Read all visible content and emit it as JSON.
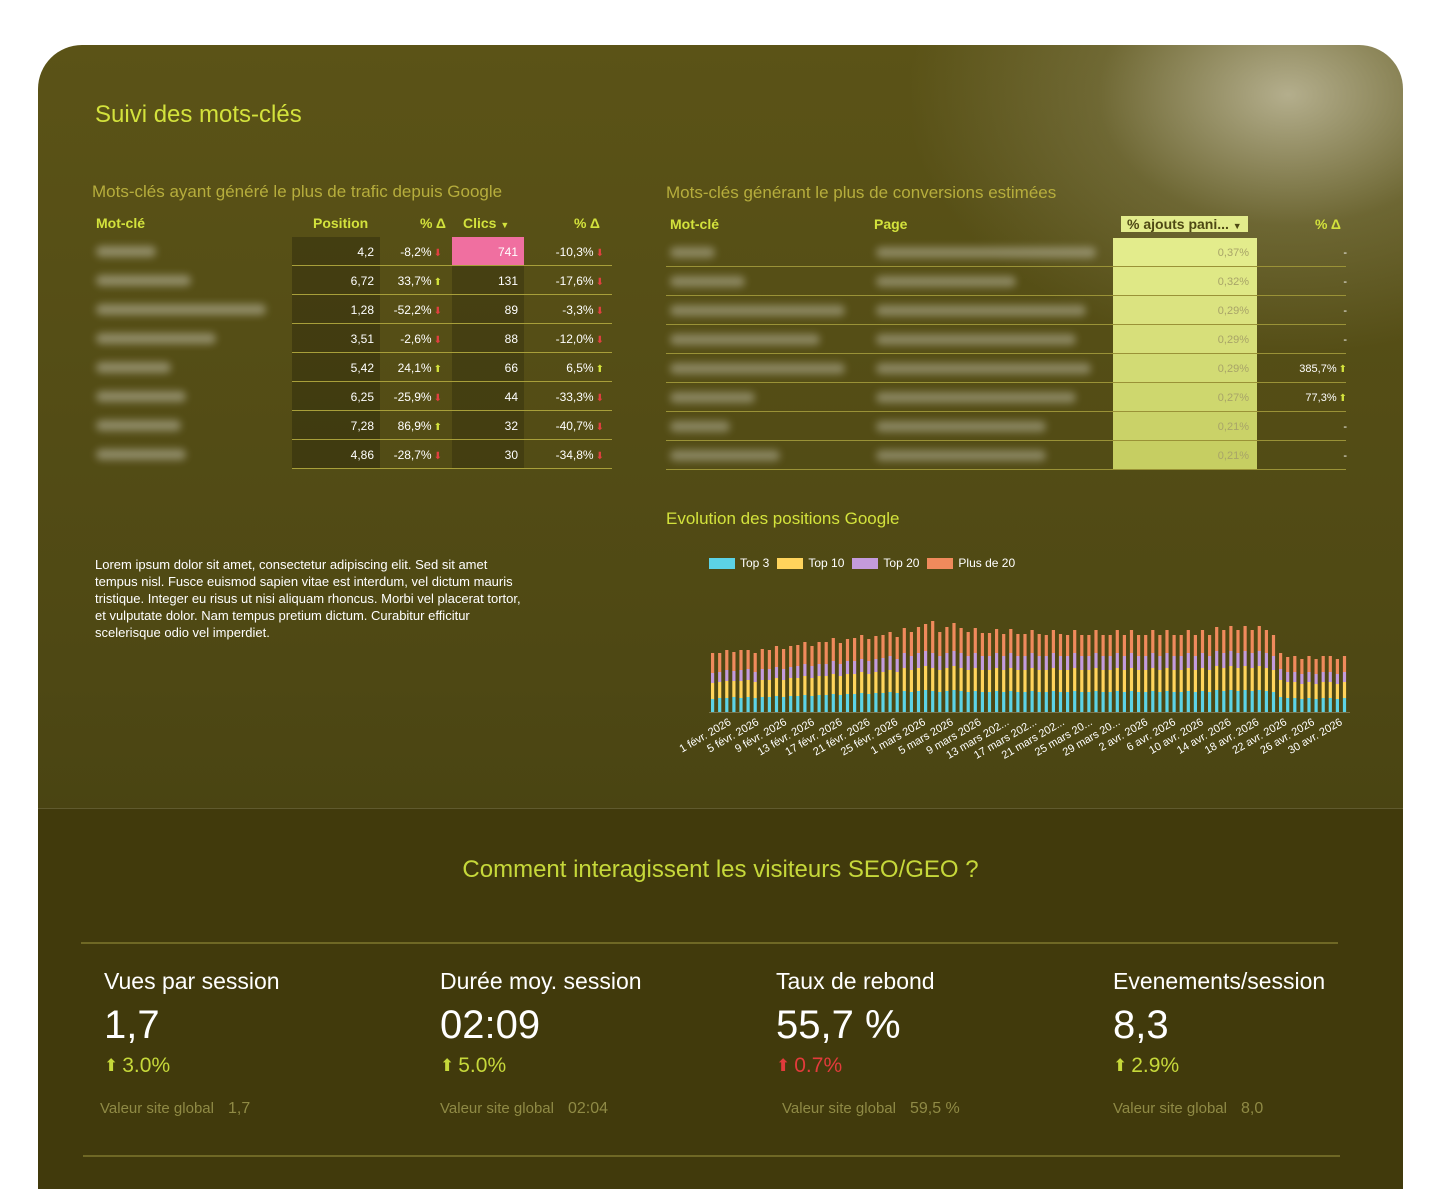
{
  "header": {
    "title": "Suivi des mots-clés"
  },
  "left_table": {
    "title": "Mots-clés ayant généré le plus de trafic depuis Google",
    "columns": [
      "Mot-clé",
      "Position",
      "% Δ",
      "Clics",
      "% Δ"
    ],
    "sort_icon": "caret-down-icon",
    "rows": [
      {
        "position": "4,2",
        "pos_delta": "-8,2%",
        "pos_dir": "down",
        "clics": "741",
        "clics_delta": "-10,3%",
        "clics_dir": "down",
        "highlight": true
      },
      {
        "position": "6,72",
        "pos_delta": "33,7%",
        "pos_dir": "up",
        "clics": "131",
        "clics_delta": "-17,6%",
        "clics_dir": "down"
      },
      {
        "position": "1,28",
        "pos_delta": "-52,2%",
        "pos_dir": "down",
        "clics": "89",
        "clics_delta": "-3,3%",
        "clics_dir": "down"
      },
      {
        "position": "3,51",
        "pos_delta": "-2,6%",
        "pos_dir": "down",
        "clics": "88",
        "clics_delta": "-12,0%",
        "clics_dir": "down"
      },
      {
        "position": "5,42",
        "pos_delta": "24,1%",
        "pos_dir": "up",
        "clics": "66",
        "clics_delta": "6,5%",
        "clics_dir": "up"
      },
      {
        "position": "6,25",
        "pos_delta": "-25,9%",
        "pos_dir": "down",
        "clics": "44",
        "clics_delta": "-33,3%",
        "clics_dir": "down"
      },
      {
        "position": "7,28",
        "pos_delta": "86,9%",
        "pos_dir": "up",
        "clics": "32",
        "clics_delta": "-40,7%",
        "clics_dir": "down"
      },
      {
        "position": "4,86",
        "pos_delta": "-28,7%",
        "pos_dir": "down",
        "clics": "30",
        "clics_delta": "-34,8%",
        "clics_dir": "down"
      }
    ]
  },
  "right_table": {
    "title": "Mots-clés générant le plus de conversions estimées",
    "columns": [
      "Mot-clé",
      "Page",
      "% ajouts pani...",
      "% Δ"
    ],
    "rows": [
      {
        "pct": "0,37%",
        "delta": "-",
        "dir": "none"
      },
      {
        "pct": "0,32%",
        "delta": "-",
        "dir": "none"
      },
      {
        "pct": "0,29%",
        "delta": "-",
        "dir": "none"
      },
      {
        "pct": "0,29%",
        "delta": "-",
        "dir": "none"
      },
      {
        "pct": "0,29%",
        "delta": "385,7%",
        "dir": "up"
      },
      {
        "pct": "0,27%",
        "delta": "77,3%",
        "dir": "up"
      },
      {
        "pct": "0,21%",
        "delta": "-",
        "dir": "none"
      },
      {
        "pct": "0,21%",
        "delta": "-",
        "dir": "none"
      }
    ],
    "colors": {
      "heat_high": "#e3ec8c",
      "heat_low": "#c6ce62"
    }
  },
  "lorem": "Lorem ipsum dolor sit amet, consectetur adipiscing elit. Sed sit amet tempus nisl. Fusce euismod sapien vitae est interdum, vel dictum mauris tristique. Integer eu risus ut nisi aliquam rhoncus. Morbi vel placerat tortor, et vulputate dolor. Nam tempus pretium dictum. Curabitur efficitur scelerisque odio vel imperdiet.",
  "chart_data": {
    "type": "bar",
    "stacked": true,
    "title": "Evolution des positions Google",
    "legend": "top-left",
    "x_tick_labels": [
      "1 févr. 2026",
      "5 févr. 2026",
      "9 févr. 2026",
      "13 févr. 2026",
      "17 févr. 2026",
      "21 févr. 2026",
      "25 févr. 2026",
      "1 mars 2026",
      "5 mars 2026",
      "9 mars 2026",
      "13 mars 202...",
      "17 mars 202...",
      "21 mars 202...",
      "25 mars 20...",
      "29 mars 20...",
      "2 avr. 2026",
      "6 avr. 2026",
      "10 avr. 2026",
      "14 avr. 2026",
      "18 avr. 2026",
      "22 avr. 2026",
      "26 avr. 2026",
      "30 avr. 2026"
    ],
    "days": 90,
    "series": [
      {
        "name": "Top 3",
        "color": "#5cd3e6",
        "values": [
          13,
          14,
          14,
          15,
          14,
          15,
          14,
          15,
          15,
          16,
          15,
          16,
          16,
          17,
          16,
          17,
          17,
          18,
          17,
          18,
          18,
          19,
          18,
          19,
          19,
          20,
          19,
          21,
          20,
          21,
          22,
          21,
          20,
          21,
          22,
          21,
          20,
          21,
          20,
          20,
          21,
          20,
          21,
          20,
          20,
          21,
          20,
          20,
          21,
          20,
          20,
          21,
          20,
          20,
          21,
          20,
          20,
          21,
          20,
          21,
          20,
          20,
          21,
          20,
          21,
          20,
          20,
          21,
          20,
          21,
          20,
          22,
          21,
          22,
          21,
          22,
          21,
          22,
          21,
          20,
          15,
          14,
          14,
          13,
          14,
          13,
          14,
          14,
          13,
          14
        ]
      },
      {
        "name": "Top 10",
        "color": "#ffd45c",
        "values": [
          16,
          16,
          17,
          16,
          17,
          17,
          16,
          17,
          17,
          18,
          17,
          18,
          18,
          19,
          18,
          19,
          19,
          20,
          19,
          20,
          20,
          21,
          20,
          21,
          21,
          22,
          21,
          23,
          22,
          23,
          24,
          23,
          22,
          23,
          24,
          23,
          22,
          23,
          22,
          22,
          23,
          22,
          23,
          22,
          22,
          23,
          22,
          22,
          23,
          22,
          22,
          23,
          22,
          22,
          23,
          22,
          22,
          23,
          22,
          23,
          22,
          22,
          23,
          22,
          23,
          22,
          22,
          23,
          22,
          23,
          22,
          24,
          23,
          24,
          23,
          24,
          23,
          24,
          23,
          22,
          17,
          16,
          16,
          15,
          16,
          15,
          16,
          16,
          15,
          16
        ]
      },
      {
        "name": "Top 20",
        "color": "#c49bdc",
        "values": [
          10,
          10,
          11,
          10,
          11,
          11,
          10,
          11,
          11,
          11,
          11,
          11,
          12,
          12,
          12,
          12,
          12,
          13,
          12,
          13,
          13,
          13,
          13,
          13,
          14,
          14,
          13,
          15,
          14,
          15,
          15,
          15,
          14,
          15,
          15,
          15,
          14,
          15,
          14,
          14,
          15,
          14,
          15,
          14,
          14,
          15,
          14,
          14,
          15,
          14,
          14,
          15,
          14,
          14,
          15,
          14,
          14,
          15,
          14,
          15,
          14,
          14,
          15,
          14,
          15,
          14,
          14,
          15,
          14,
          15,
          14,
          15,
          15,
          15,
          15,
          15,
          15,
          15,
          15,
          14,
          11,
          10,
          10,
          10,
          10,
          10,
          10,
          10,
          10,
          10
        ]
      },
      {
        "name": "Plus de 20",
        "color": "#f08a5c",
        "values": [
          20,
          19,
          20,
          19,
          20,
          19,
          19,
          20,
          19,
          21,
          20,
          21,
          21,
          22,
          20,
          22,
          22,
          23,
          21,
          22,
          23,
          24,
          22,
          23,
          23,
          24,
          22,
          25,
          24,
          26,
          27,
          32,
          24,
          26,
          28,
          25,
          24,
          25,
          23,
          23,
          24,
          22,
          24,
          22,
          22,
          23,
          22,
          21,
          23,
          22,
          21,
          23,
          21,
          21,
          23,
          21,
          21,
          23,
          21,
          23,
          21,
          21,
          23,
          21,
          23,
          21,
          21,
          23,
          21,
          23,
          21,
          24,
          23,
          25,
          23,
          25,
          23,
          25,
          23,
          21,
          16,
          15,
          16,
          15,
          16,
          15,
          16,
          16,
          15,
          16
        ]
      }
    ]
  },
  "section2": {
    "title": "Comment interagissent les visiteurs SEO/GEO ?"
  },
  "metrics": [
    {
      "label": "Vues par session",
      "value": "1,7",
      "change": "3.0%",
      "direction": "up",
      "global_label": "Valeur site global",
      "global_value": "1,7"
    },
    {
      "label": "Durée moy. session",
      "value": "02:09",
      "change": "5.0%",
      "direction": "up",
      "global_label": "Valeur site global",
      "global_value": "02:04"
    },
    {
      "label": "Taux de rebond",
      "value": "55,7 %",
      "change": "0.7%",
      "direction": "down",
      "global_label": "Valeur site global",
      "global_value": "59,5 %"
    },
    {
      "label": "Evenements/session",
      "value": "8,3",
      "change": "2.9%",
      "direction": "up",
      "global_label": "Valeur site global",
      "global_value": "8,0"
    }
  ]
}
